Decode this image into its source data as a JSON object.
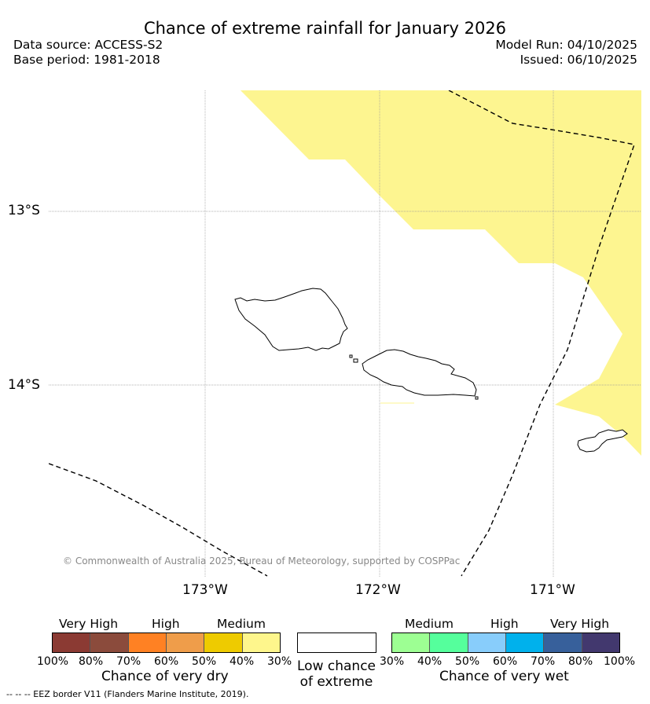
{
  "header": {
    "title": "Chance of extreme rainfall for January 2026",
    "data_source": "Data source: ACCESS-S2",
    "base_period": "Base period: 1981-2018",
    "model_run": "Model Run: 04/10/2025",
    "issued": "Issued: 06/10/2025"
  },
  "map": {
    "lat_labels": [
      "13°S",
      "14°S"
    ],
    "lon_labels": [
      "173°W",
      "172°W",
      "171°W"
    ],
    "copyright": "© Commonwealth of Australia 2025, Bureau of Meteorology, supported by COSPPac",
    "colors": {
      "medium_dry": "#fdf590",
      "coastline": "#000000",
      "eez": "#000000",
      "grid": "#999999"
    }
  },
  "legend": {
    "dry": {
      "top_labels": [
        "Very High",
        "High",
        "Medium"
      ],
      "ticks": [
        "100%",
        "80%",
        "70%",
        "60%",
        "50%",
        "40%",
        "30%"
      ],
      "title": "Chance of very dry",
      "colors": [
        "#8b3a33",
        "#8b4b3c",
        "#ff8123",
        "#ef9d4a",
        "#eecb00",
        "#fef68c"
      ]
    },
    "low": {
      "title_line1": "Low chance",
      "title_line2": "of extreme",
      "color": "#ffffff"
    },
    "wet": {
      "top_labels": [
        "Medium",
        "High",
        "Very High"
      ],
      "ticks": [
        "30%",
        "40%",
        "50%",
        "60%",
        "70%",
        "80%",
        "100%"
      ],
      "title": "Chance of very wet",
      "colors": [
        "#9dff93",
        "#55ff9c",
        "#88cdfb",
        "#00b1ec",
        "#37609b",
        "#42386e"
      ]
    }
  },
  "footer": {
    "eez_note": "--  --  -- EEZ border V11 (Flanders Marine Institute, 2019)."
  }
}
